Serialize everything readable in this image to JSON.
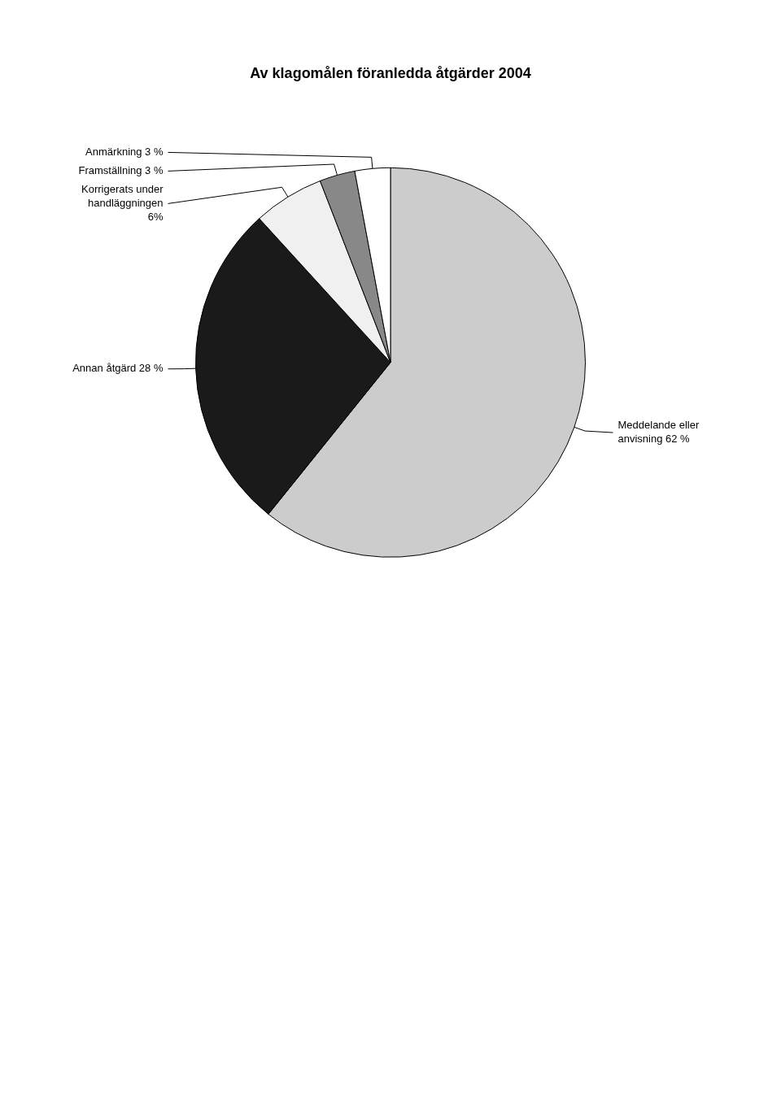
{
  "chart_data": {
    "type": "pie",
    "title": "Av klagomålen föranledda åtgärder 2004",
    "categories": [
      "Meddelande eller\nanvisning 62 %",
      "Annan åtgärd 28 %",
      "Korrigerats under\nhandläggningen\n6%",
      "Framställning 3 %",
      "Anmärkning 3 %"
    ],
    "values": [
      62,
      28,
      6,
      3,
      3
    ],
    "colors": [
      "#cccccc",
      "#1a1a1a",
      "#f0f0f0",
      "#888888",
      "#ffffff"
    ]
  }
}
